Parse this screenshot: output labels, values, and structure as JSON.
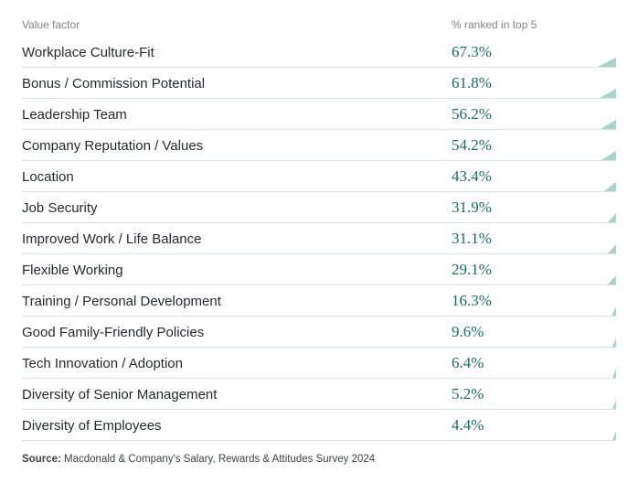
{
  "table": {
    "header_left": "Value factor",
    "header_right": "% ranked in top 5",
    "header_color": "#7a8a88",
    "header_fontsize": 12,
    "factor_color": "#1f2a2a",
    "factor_fontsize": 15,
    "pct_color": "#1a6d63",
    "pct_fontsize": 17,
    "pct_font_family": "Georgia, serif",
    "border_color": "#cfe5e0",
    "background_color": "#ffffff",
    "wedge_color": "#a9d3cb",
    "wedge_max_width": 20,
    "wedge_height": 10,
    "rows": [
      {
        "factor": "Workplace Culture-Fit",
        "pct": "67.3%",
        "val": 67.3
      },
      {
        "factor": "Bonus / Commission Potential",
        "pct": "61.8%",
        "val": 61.8
      },
      {
        "factor": "Leadership Team",
        "pct": "56.2%",
        "val": 56.2
      },
      {
        "factor": "Company Reputation / Values",
        "pct": "54.2%",
        "val": 54.2
      },
      {
        "factor": "Location",
        "pct": "43.4%",
        "val": 43.4
      },
      {
        "factor": "Job Security",
        "pct": "31.9%",
        "val": 31.9
      },
      {
        "factor": "Improved Work / Life Balance",
        "pct": "31.1%",
        "val": 31.1
      },
      {
        "factor": "Flexible Working",
        "pct": "29.1%",
        "val": 29.1
      },
      {
        "factor": "Training / Personal Development",
        "pct": "16.3%",
        "val": 16.3
      },
      {
        "factor": "Good Family-Friendly Policies",
        "pct": "9.6%",
        "val": 9.6
      },
      {
        "factor": "Tech Innovation / Adoption",
        "pct": "6.4%",
        "val": 6.4
      },
      {
        "factor": "Diversity of Senior Management",
        "pct": "5.2%",
        "val": 5.2
      },
      {
        "factor": "Diversity of Employees",
        "pct": "4.4%",
        "val": 4.4
      }
    ]
  },
  "source": {
    "label": "Source:",
    "text": "Macdonald & Company's Salary, Rewards & Attitudes Survey 2024",
    "fontsize": 11.5,
    "color": "#3a4544"
  }
}
